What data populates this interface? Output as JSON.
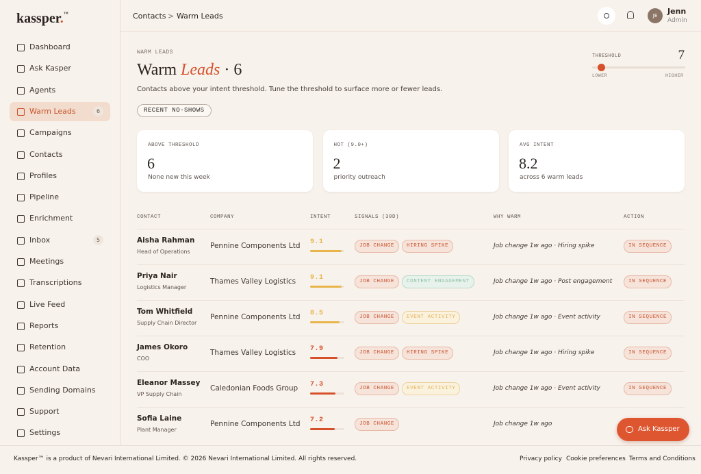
{
  "brand": {
    "name": "kassper",
    "dot": ".",
    "tm": "™"
  },
  "nav": [
    {
      "label": "Dashboard"
    },
    {
      "label": "Ask Kasper"
    },
    {
      "label": "Agents"
    },
    {
      "label": "Warm Leads",
      "badge": 6,
      "active": true
    },
    {
      "label": "Campaigns"
    },
    {
      "label": "Contacts"
    },
    {
      "label": "Profiles"
    },
    {
      "label": "Pipeline"
    },
    {
      "label": "Enrichment"
    },
    {
      "label": "Inbox",
      "badge": 5
    },
    {
      "label": "Meetings"
    },
    {
      "label": "Transcriptions"
    },
    {
      "label": "Live Feed"
    },
    {
      "label": "Reports"
    },
    {
      "label": "Retention"
    },
    {
      "label": "Account Data"
    },
    {
      "label": "Sending Domains"
    },
    {
      "label": "Support"
    },
    {
      "label": "Settings"
    }
  ],
  "breadcrumb": {
    "parent": "Contacts",
    "separator": ">",
    "current": "Warm Leads"
  },
  "user": {
    "initials": "JE",
    "name": "Jenn",
    "role": "Admin"
  },
  "header": {
    "eyebrow": "WARM LEADS",
    "title": "Warm",
    "title_accent": "Leads",
    "separator": "·",
    "count": 6,
    "description": "Contacts above your intent threshold. Tune the threshold to surface more or fewer leads.",
    "chip": "RECENT NO-SHOWS"
  },
  "threshold": {
    "label": "THRESHOLD",
    "value": 7,
    "min_label": "LOWER",
    "max_label": "HIGHER"
  },
  "stats": [
    {
      "label": "ABOVE THRESHOLD",
      "value": 6,
      "note": "None new this week"
    },
    {
      "label": "HOT (9.0+)",
      "value": 2,
      "note": "priority outreach"
    },
    {
      "label": "AVG INTENT",
      "value": 8.2,
      "note": "across 6 warm leads"
    }
  ],
  "table": {
    "columns": [
      "CONTACT",
      "COMPANY",
      "INTENT",
      "SIGNALS (30D)",
      "WHY WARM",
      "ACTION"
    ],
    "rows": [
      {
        "name": "Aisha Rahman",
        "role": "Head of Operations",
        "company": "Pennine Components Ltd",
        "intent": 9.1,
        "intent_color": "#e7b54a",
        "signals": [
          {
            "label": "JOB CHANGE",
            "tone": "red"
          },
          {
            "label": "HIRING SPIKE",
            "tone": "red"
          }
        ],
        "why": "Job change 1w ago · Hiring spike",
        "action": "IN SEQUENCE"
      },
      {
        "name": "Priya Nair",
        "role": "Logistics Manager",
        "company": "Thames Valley Logistics",
        "intent": 9.1,
        "intent_color": "#e7b54a",
        "signals": [
          {
            "label": "JOB CHANGE",
            "tone": "red"
          },
          {
            "label": "CONTENT ENGAGEMENT",
            "tone": "green"
          }
        ],
        "why": "Job change 1w ago · Post engagement",
        "action": "IN SEQUENCE"
      },
      {
        "name": "Tom Whitfield",
        "role": "Supply Chain Director",
        "company": "Pennine Components Ltd",
        "intent": 8.5,
        "intent_color": "#e7b54a",
        "signals": [
          {
            "label": "JOB CHANGE",
            "tone": "red"
          },
          {
            "label": "EVENT ACTIVITY",
            "tone": "yellow"
          }
        ],
        "why": "Job change 1w ago · Event activity",
        "action": "IN SEQUENCE"
      },
      {
        "name": "James Okoro",
        "role": "COO",
        "company": "Thames Valley Logistics",
        "intent": 7.9,
        "intent_color": "#d6502a",
        "signals": [
          {
            "label": "JOB CHANGE",
            "tone": "red"
          },
          {
            "label": "HIRING SPIKE",
            "tone": "red"
          }
        ],
        "why": "Job change 1w ago · Hiring spike",
        "action": "IN SEQUENCE"
      },
      {
        "name": "Eleanor Massey",
        "role": "VP Supply Chain",
        "company": "Caledonian Foods Group",
        "intent": 7.3,
        "intent_color": "#d6502a",
        "signals": [
          {
            "label": "JOB CHANGE",
            "tone": "red"
          },
          {
            "label": "EVENT ACTIVITY",
            "tone": "yellow"
          }
        ],
        "why": "Job change 1w ago · Event activity",
        "action": "IN SEQUENCE"
      },
      {
        "name": "Sofia Laine",
        "role": "Plant Manager",
        "company": "Pennine Components Ltd",
        "intent": 7.2,
        "intent_color": "#d6502a",
        "signals": [
          {
            "label": "JOB CHANGE",
            "tone": "red"
          }
        ],
        "why": "Job change 1w ago"
      }
    ]
  },
  "assistant_button": "Ask Kassper",
  "footer": {
    "copyright": "Kassper™ is a product of Nevari International Limited. © 2026 Nevari International Limited. All rights reserved.",
    "links": [
      "Privacy policy",
      "Cookie preferences",
      "Terms and Conditions"
    ]
  }
}
